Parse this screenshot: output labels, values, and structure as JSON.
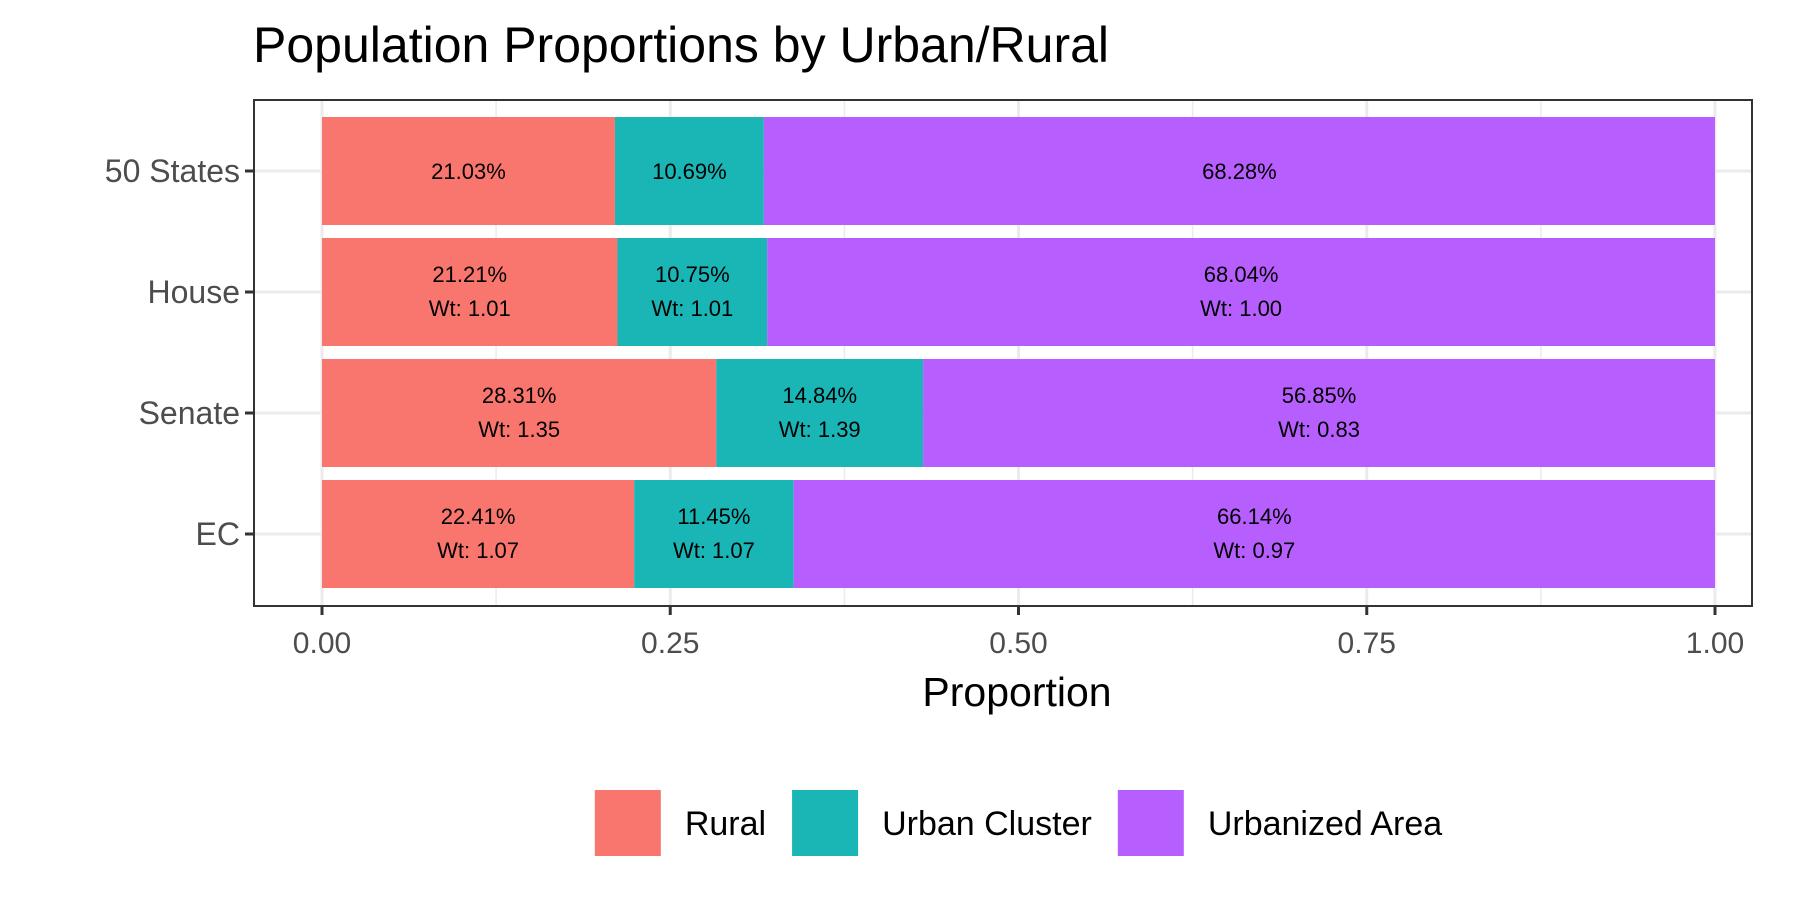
{
  "chart_data": {
    "type": "bar",
    "orientation": "horizontal",
    "stacked": true,
    "title": "Population Proportions by Urban/Rural",
    "xlabel": "Proportion",
    "ylabel": "",
    "xlim": [
      0,
      1
    ],
    "x_ticks": [
      "0.00",
      "0.25",
      "0.50",
      "0.75",
      "1.00"
    ],
    "categories": [
      "50 States",
      "House",
      "Senate",
      "EC"
    ],
    "grid": true,
    "legend_position": "bottom",
    "series": [
      {
        "name": "Rural",
        "color": "#F8766D",
        "values": [
          0.2103,
          0.2121,
          0.2831,
          0.2241
        ],
        "labels": [
          "21.03%",
          "21.21%",
          "28.31%",
          "22.41%"
        ],
        "weights": [
          null,
          "Wt: 1.01",
          "Wt: 1.35",
          "Wt: 1.07"
        ]
      },
      {
        "name": "Urban Cluster",
        "color": "#1AB5B5",
        "values": [
          0.1069,
          0.1075,
          0.1484,
          0.1145
        ],
        "labels": [
          "10.69%",
          "10.75%",
          "14.84%",
          "11.45%"
        ],
        "weights": [
          null,
          "Wt: 1.01",
          "Wt: 1.39",
          "Wt: 1.07"
        ]
      },
      {
        "name": "Urbanized Area",
        "color": "#B75EFF",
        "values": [
          0.6828,
          0.6804,
          0.5685,
          0.6614
        ],
        "labels": [
          "68.28%",
          "68.04%",
          "56.85%",
          "66.14%"
        ],
        "weights": [
          null,
          "Wt: 1.00",
          "Wt: 0.83",
          "Wt: 0.97"
        ]
      }
    ]
  }
}
